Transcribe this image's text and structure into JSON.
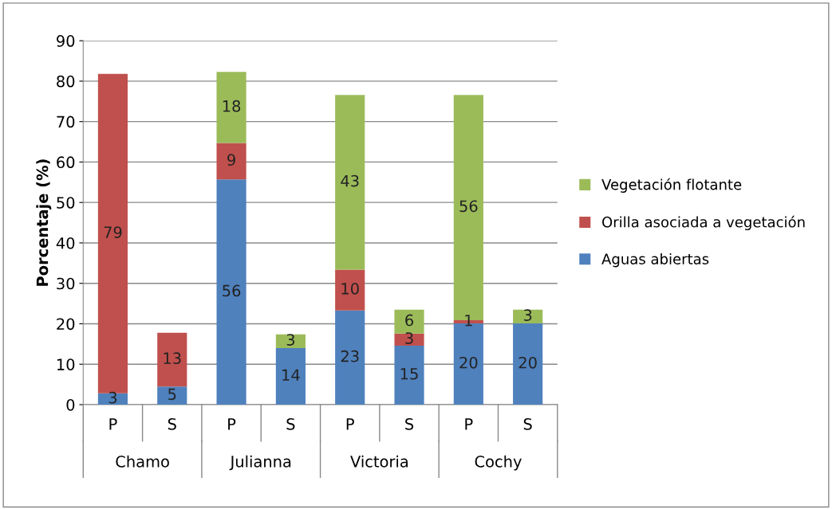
{
  "chart_data": {
    "type": "bar",
    "stacked": true,
    "ylabel": "Porcentaje (%)",
    "categories": [
      "P",
      "S",
      "P",
      "S",
      "P",
      "S",
      "P",
      "S"
    ],
    "annotations": [
      "Chamo",
      "Julianna",
      "Victoria",
      "Cochy"
    ],
    "series": [
      {
        "name": "Aguas abiertas",
        "color": "#4f81bd",
        "values": [
          2.8,
          4.5,
          55.7,
          14.0,
          23.3,
          14.6,
          20.1,
          20.1
        ],
        "value_labels": [
          "3",
          "5",
          "56",
          "14",
          "23",
          "15",
          "20",
          "20"
        ]
      },
      {
        "name": "Orilla asociada a vegetación",
        "color": "#c0504d",
        "values": [
          79.0,
          13.3,
          9.0,
          null,
          10.1,
          3.0,
          0.8,
          null
        ],
        "value_labels": [
          "79",
          "13",
          "9",
          null,
          "10",
          "3",
          "1",
          null
        ]
      },
      {
        "name": "Vegetación flotante",
        "color": "#9bbb59",
        "values": [
          null,
          null,
          17.6,
          3.4,
          43.2,
          5.9,
          55.7,
          3.4
        ],
        "value_labels": [
          null,
          null,
          "18",
          "3",
          "43",
          "6",
          "56",
          "3"
        ]
      }
    ],
    "ylim": [
      0,
      90
    ],
    "yticks": [
      0,
      10,
      20,
      30,
      40,
      50,
      60,
      70,
      80,
      90
    ],
    "grid": "y",
    "legend": "right"
  }
}
